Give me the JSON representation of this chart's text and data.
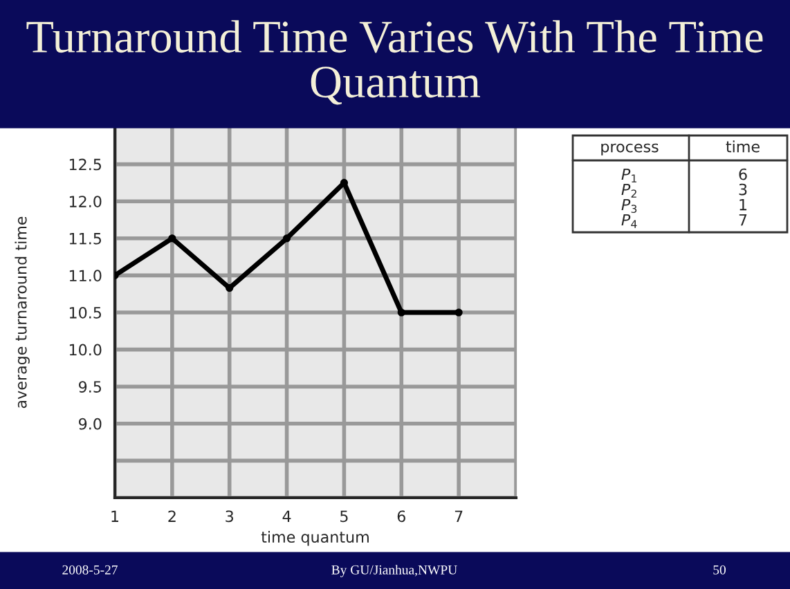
{
  "chart_data": {
    "type": "line",
    "title": "Turnaround Time Varies With The Time Quantum",
    "xlabel": "time quantum",
    "ylabel": "average turnaround time",
    "x": [
      1,
      2,
      3,
      4,
      5,
      6,
      7
    ],
    "series": [
      {
        "color": "#000000",
        "values": [
          11.0,
          11.5,
          10.83,
          11.5,
          12.25,
          10.5,
          10.5
        ]
      }
    ],
    "xlim": [
      1,
      8
    ],
    "xticks": [
      1,
      2,
      3,
      4,
      5,
      6,
      7,
      {
        "value": 8,
        "label": null
      }
    ],
    "ylim": [
      8.0,
      13.0
    ],
    "yticks": [
      {
        "value": 8.0,
        "label": null
      },
      {
        "value": 8.5,
        "label": null
      },
      {
        "value": 9.0,
        "label": "9.0"
      },
      {
        "value": 9.5,
        "label": "9.5"
      },
      {
        "value": 10.0,
        "label": "10.0"
      },
      {
        "value": 10.5,
        "label": "10.5"
      },
      {
        "value": 11.0,
        "label": "11.0"
      },
      {
        "value": 11.5,
        "label": "11.5"
      },
      {
        "value": 12.0,
        "label": "12.0"
      },
      {
        "value": 12.5,
        "label": "12.5"
      }
    ],
    "grid": true,
    "marker": "circle",
    "line_style": "solid",
    "legend": false,
    "annotations": [
      "process",
      "time",
      "P$_{1}$",
      "6",
      "P$_{2}$",
      "3",
      "P$_{3}$",
      "1",
      "P$_{4}$",
      "7",
      "2008-5-27",
      "By GU/Jianhua,NWPU",
      "50"
    ]
  }
}
